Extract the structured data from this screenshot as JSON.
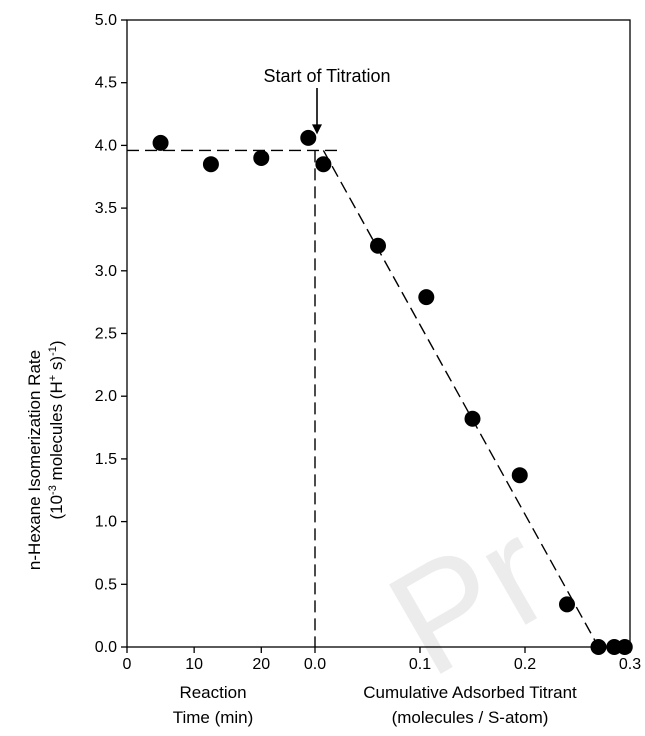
{
  "chart_data": {
    "type": "scatter",
    "title": "",
    "ylabel_line1": "n-Hexane Isomerization Rate",
    "ylabel_line2_pre": "(10",
    "ylabel_line2_exp": "-3",
    "ylabel_line2_mid": " molecules (H",
    "ylabel_line2_sup2": "+",
    "ylabel_line2_mid2": " s)",
    "ylabel_line2_sup3": "-1",
    "ylabel_line2_post": ")",
    "ylim": [
      0,
      5.0
    ],
    "yticks": [
      "0.0",
      "0.5",
      "1.0",
      "1.5",
      "2.0",
      "2.5",
      "3.0",
      "3.5",
      "4.0",
      "4.5",
      "5.0"
    ],
    "left_axis": {
      "label_line1": "Reaction",
      "label_line2": "Time (min)",
      "xlim": [
        0,
        28
      ],
      "ticks": [
        "0",
        "10",
        "20"
      ]
    },
    "right_axis": {
      "label_line1": "Cumulative Adsorbed Titrant",
      "label_line2": "(molecules / S-atom)",
      "xlim": [
        0,
        0.3
      ],
      "ticks": [
        "0.0",
        "0.1",
        "0.2",
        "0.3"
      ]
    },
    "series_time": [
      {
        "x": 5,
        "y": 4.02
      },
      {
        "x": 12.5,
        "y": 3.85
      },
      {
        "x": 20,
        "y": 3.9
      },
      {
        "x": 27,
        "y": 4.06
      }
    ],
    "series_titrant": [
      {
        "x": 0.008,
        "y": 3.85
      },
      {
        "x": 0.06,
        "y": 3.2
      },
      {
        "x": 0.106,
        "y": 2.79
      },
      {
        "x": 0.15,
        "y": 1.82
      },
      {
        "x": 0.195,
        "y": 1.37
      },
      {
        "x": 0.24,
        "y": 0.34
      },
      {
        "x": 0.27,
        "y": 0.0
      },
      {
        "x": 0.285,
        "y": 0.0
      },
      {
        "x": 0.295,
        "y": 0.0
      }
    ],
    "plateau_line_y": 3.96,
    "fit_line": {
      "x0": 0.008,
      "y0": 3.96,
      "x1": 0.27,
      "y1": 0.0
    },
    "titration_marker_y": 4.2,
    "annotation": "Start of Titration",
    "watermark": "Pr"
  }
}
